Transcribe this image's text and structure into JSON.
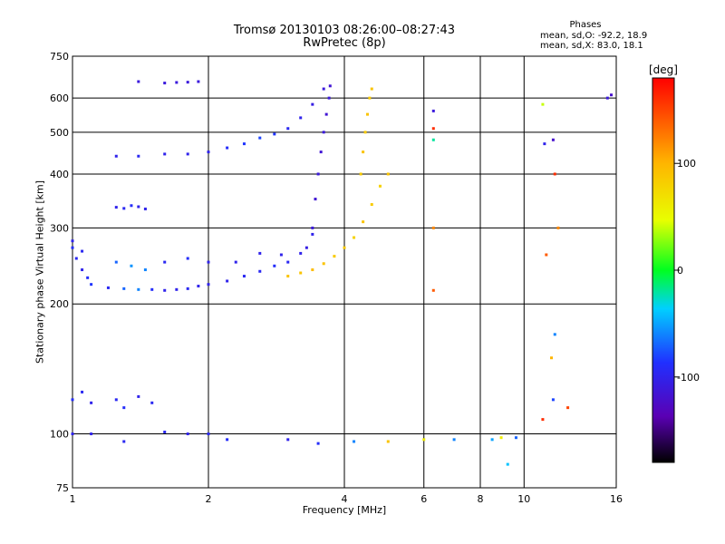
{
  "header": {
    "title": "Tromsø 20130103 08:26:00–08:27:43",
    "subtitle": "RwPretec (8p)",
    "phases_heading": "Phases",
    "phases_line_o": "mean, sd,O: -92.2, 18.9",
    "phases_line_x": "mean, sd,X:  83.0, 18.1"
  },
  "colorbar": {
    "unit": "[deg]",
    "range": [
      -180,
      180
    ],
    "ticks": [
      "100",
      "0",
      "-100"
    ],
    "tick_values": [
      100,
      0,
      -100
    ]
  },
  "chart_data": {
    "type": "scatter",
    "title": "Tromsø 20130103 08:26:00–08:27:43",
    "subtitle": "RwPretec (8p)",
    "xlabel": "Frequency [MHz]",
    "ylabel": "Stationary phase Virtual Height [km]",
    "xscale": "log",
    "yscale": "log",
    "xlim": [
      1,
      16
    ],
    "ylim": [
      75,
      750
    ],
    "xticks": [
      1,
      2,
      4,
      6,
      8,
      10,
      16
    ],
    "xtick_labels": [
      "1",
      "2",
      "4",
      "6",
      "8",
      "10",
      "16"
    ],
    "yticks": [
      75,
      100,
      200,
      300,
      400,
      500,
      600,
      750
    ],
    "ytick_labels": [
      "75",
      "100",
      "200",
      "300",
      "400",
      "500",
      "600",
      "750"
    ],
    "grid": true,
    "color_encoding": "phase [deg]",
    "series": [
      {
        "values": [
          [
            1.0,
            270,
            -90
          ],
          [
            1.02,
            255,
            -95
          ],
          [
            1.05,
            240,
            -100
          ],
          [
            1.08,
            230,
            -90
          ],
          [
            1.1,
            222,
            -85
          ],
          [
            1.2,
            218,
            -95
          ],
          [
            1.3,
            217,
            -70
          ],
          [
            1.4,
            216,
            -60
          ],
          [
            1.5,
            216,
            -90
          ],
          [
            1.6,
            215,
            -100
          ],
          [
            1.7,
            216,
            -100
          ],
          [
            1.8,
            217,
            -95
          ],
          [
            1.9,
            220,
            -100
          ],
          [
            2.0,
            222,
            -100
          ],
          [
            2.2,
            226,
            -100
          ],
          [
            2.4,
            232,
            -95
          ],
          [
            2.6,
            238,
            -95
          ],
          [
            2.8,
            245,
            -90
          ],
          [
            3.0,
            250,
            -95
          ],
          [
            3.2,
            262,
            -100
          ],
          [
            3.3,
            270,
            -105
          ],
          [
            3.4,
            290,
            -100
          ]
        ]
      },
      {
        "values": [
          [
            1.0,
            280,
            -100
          ],
          [
            1.05,
            265,
            -95
          ],
          [
            1.25,
            250,
            -70
          ],
          [
            1.35,
            245,
            -55
          ],
          [
            1.45,
            240,
            -60
          ],
          [
            1.6,
            250,
            -95
          ],
          [
            1.8,
            255,
            -90
          ],
          [
            2.0,
            250,
            -100
          ],
          [
            2.3,
            250,
            -100
          ],
          [
            2.6,
            262,
            -100
          ],
          [
            2.9,
            260,
            -100
          ]
        ]
      },
      {
        "values": [
          [
            3.0,
            232,
            90
          ],
          [
            3.2,
            236,
            90
          ],
          [
            3.4,
            240,
            95
          ],
          [
            3.6,
            248,
            90
          ],
          [
            3.8,
            258,
            85
          ],
          [
            4.0,
            270,
            85
          ],
          [
            4.2,
            285,
            80
          ],
          [
            4.4,
            310,
            90
          ],
          [
            4.6,
            340,
            85
          ],
          [
            4.8,
            375,
            80
          ],
          [
            5.0,
            400,
            90
          ]
        ]
      },
      {
        "values": [
          [
            3.4,
            300,
            -110
          ],
          [
            3.45,
            350,
            -115
          ],
          [
            3.5,
            400,
            -110
          ],
          [
            3.55,
            450,
            -115
          ],
          [
            3.6,
            500,
            -110
          ],
          [
            3.65,
            550,
            -115
          ],
          [
            3.7,
            600,
            -110
          ],
          [
            3.72,
            640,
            -115
          ]
        ]
      },
      {
        "values": [
          [
            4.35,
            400,
            85
          ],
          [
            4.4,
            450,
            90
          ],
          [
            4.45,
            500,
            85
          ],
          [
            4.5,
            550,
            90
          ],
          [
            4.55,
            600,
            85
          ],
          [
            4.6,
            630,
            90
          ]
        ]
      },
      {
        "values": [
          [
            1.25,
            440,
            -100
          ],
          [
            1.4,
            440,
            -95
          ],
          [
            1.6,
            445,
            -100
          ],
          [
            1.8,
            445,
            -100
          ],
          [
            2.0,
            450,
            -100
          ],
          [
            2.2,
            460,
            -90
          ],
          [
            2.4,
            470,
            -85
          ],
          [
            2.6,
            485,
            -80
          ],
          [
            2.8,
            495,
            -85
          ],
          [
            3.0,
            510,
            -95
          ],
          [
            3.2,
            540,
            -100
          ],
          [
            3.4,
            580,
            -105
          ],
          [
            3.6,
            630,
            -110
          ]
        ]
      },
      {
        "values": [
          [
            1.25,
            335,
            -100
          ],
          [
            1.3,
            333,
            -95
          ],
          [
            1.35,
            338,
            -90
          ],
          [
            1.4,
            336,
            -100
          ],
          [
            1.45,
            332,
            -100
          ]
        ]
      },
      {
        "values": [
          [
            1.6,
            650,
            -110
          ],
          [
            1.7,
            652,
            -110
          ],
          [
            1.8,
            653,
            -110
          ],
          [
            1.9,
            655,
            -110
          ],
          [
            1.4,
            655,
            -110
          ]
        ]
      },
      {
        "values": [
          [
            1.0,
            120,
            -90
          ],
          [
            1.05,
            125,
            -95
          ],
          [
            1.1,
            118,
            -100
          ],
          [
            1.25,
            120,
            -95
          ],
          [
            1.3,
            115,
            -90
          ],
          [
            1.4,
            122,
            -100
          ],
          [
            1.5,
            118,
            -95
          ]
        ]
      },
      {
        "values": [
          [
            1.0,
            100,
            -100
          ],
          [
            1.1,
            100,
            -100
          ],
          [
            1.3,
            96,
            -95
          ],
          [
            1.6,
            101,
            -95
          ],
          [
            1.8,
            100,
            -100
          ],
          [
            2.0,
            100,
            -95
          ],
          [
            2.2,
            97,
            -90
          ],
          [
            3.0,
            97,
            -100
          ],
          [
            3.5,
            95,
            -90
          ],
          [
            4.2,
            96,
            -60
          ],
          [
            5.0,
            96,
            90
          ],
          [
            6.0,
            97,
            60
          ],
          [
            7.0,
            97,
            -60
          ],
          [
            8.5,
            97,
            -50
          ],
          [
            9.2,
            85,
            -40
          ]
        ]
      },
      {
        "values": [
          [
            6.3,
            480,
            -20
          ],
          [
            6.3,
            510,
            160
          ],
          [
            6.3,
            560,
            -110
          ],
          [
            6.3,
            300,
            120
          ],
          [
            6.3,
            215,
            140
          ],
          [
            11.0,
            580,
            40
          ],
          [
            11.1,
            470,
            -100
          ],
          [
            11.6,
            480,
            -120
          ],
          [
            11.7,
            400,
            160
          ],
          [
            11.9,
            300,
            120
          ],
          [
            11.2,
            260,
            140
          ],
          [
            11.5,
            150,
            100
          ],
          [
            11.7,
            170,
            -60
          ],
          [
            11.6,
            120,
            -80
          ],
          [
            11.0,
            108,
            160
          ],
          [
            12.5,
            115,
            150
          ],
          [
            15.3,
            600,
            -110
          ],
          [
            15.6,
            610,
            -120
          ],
          [
            9.6,
            98,
            -70
          ],
          [
            8.9,
            98,
            60
          ]
        ]
      }
    ]
  }
}
